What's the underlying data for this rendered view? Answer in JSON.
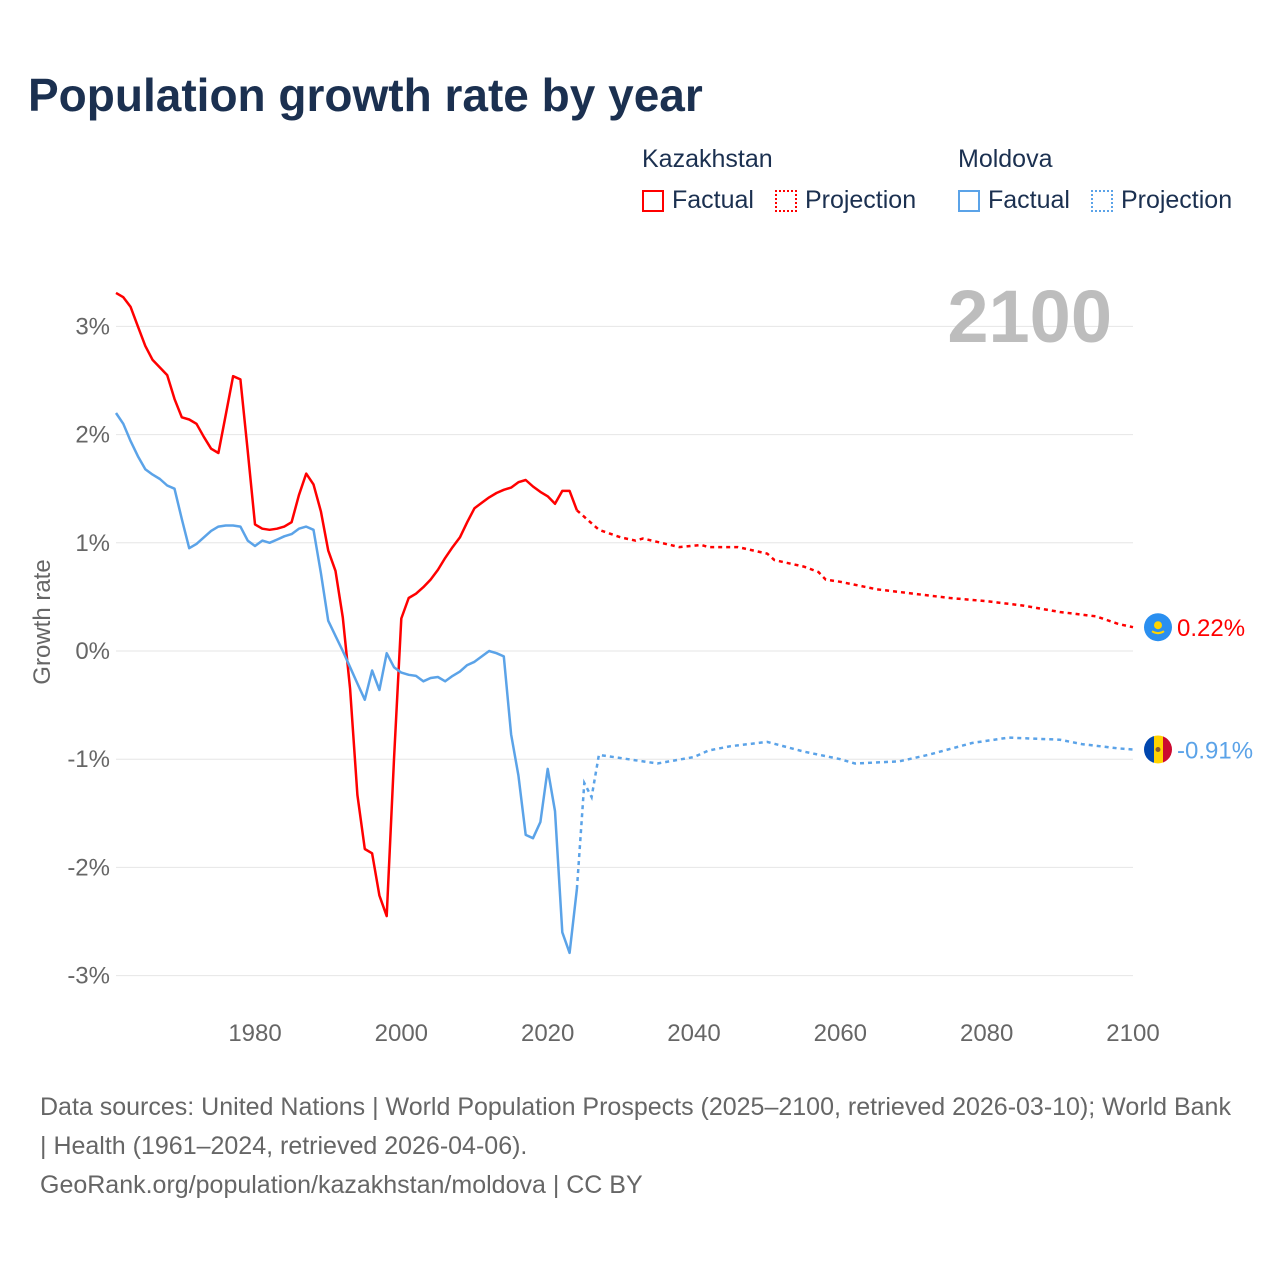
{
  "title": "Population growth rate by year",
  "legend": {
    "groups": [
      {
        "name": "Kazakhstan",
        "factual": "Factual",
        "projection": "Projection"
      },
      {
        "name": "Moldova",
        "factual": "Factual",
        "projection": "Projection"
      }
    ]
  },
  "year_label": "2100",
  "footer": {
    "sources": "Data sources: United Nations | World Population Prospects (2025–2100, retrieved 2026-03-10); World Bank | Health (1961–2024, retrieved 2026-04-06).",
    "link": "GeoRank.org/population/kazakhstan/moldova | CC BY"
  },
  "chart_data": {
    "type": "line",
    "title": "Population growth rate by year",
    "xlabel": "",
    "ylabel": "Growth rate",
    "xlim": [
      1961,
      2100
    ],
    "ylim": [
      -3.3,
      3.4
    ],
    "xticks": [
      1980,
      2000,
      2020,
      2040,
      2060,
      2080,
      2100
    ],
    "yticks": [
      {
        "v": 3,
        "label": "3%"
      },
      {
        "v": 2,
        "label": "2%"
      },
      {
        "v": 1,
        "label": "1%"
      },
      {
        "v": 0,
        "label": "0%"
      },
      {
        "v": -1,
        "label": "-1%"
      },
      {
        "v": -2,
        "label": "-2%"
      },
      {
        "v": -3,
        "label": "-3%"
      }
    ],
    "grid": true,
    "series": [
      {
        "name": "Kazakhstan",
        "color": "#ff0000",
        "end_label": "0.22%",
        "flag": "kazakhstan-flag",
        "factual": {
          "x": [
            1961,
            1962,
            1963,
            1964,
            1965,
            1966,
            1967,
            1968,
            1969,
            1970,
            1971,
            1972,
            1973,
            1974,
            1975,
            1976,
            1977,
            1978,
            1979,
            1980,
            1981,
            1982,
            1983,
            1984,
            1985,
            1986,
            1987,
            1988,
            1989,
            1990,
            1991,
            1992,
            1993,
            1994,
            1995,
            1996,
            1997,
            1998,
            1999,
            2000,
            2001,
            2002,
            2003,
            2004,
            2005,
            2006,
            2007,
            2008,
            2009,
            2010,
            2011,
            2012,
            2013,
            2014,
            2015,
            2016,
            2017,
            2018,
            2019,
            2020,
            2021,
            2022,
            2023,
            2024
          ],
          "y": [
            3.31,
            3.27,
            3.18,
            3.0,
            2.82,
            2.69,
            2.62,
            2.55,
            2.33,
            2.16,
            2.14,
            2.1,
            1.98,
            1.87,
            1.83,
            2.18,
            2.54,
            2.51,
            1.85,
            1.17,
            1.13,
            1.12,
            1.13,
            1.15,
            1.19,
            1.44,
            1.64,
            1.54,
            1.29,
            0.93,
            0.74,
            0.31,
            -0.35,
            -1.33,
            -1.83,
            -1.87,
            -2.26,
            -2.45,
            -1.0,
            0.3,
            0.49,
            0.53,
            0.59,
            0.66,
            0.75,
            0.86,
            0.96,
            1.05,
            1.19,
            1.32,
            1.37,
            1.42,
            1.46,
            1.49,
            1.51,
            1.56,
            1.58,
            1.52,
            1.47,
            1.43,
            1.36,
            1.48,
            1.48,
            1.3
          ]
        },
        "projection": {
          "x": [
            2024,
            2027,
            2030,
            2032,
            2033,
            2038,
            2041,
            2042,
            2046,
            2050,
            2051,
            2055,
            2057,
            2058,
            2060,
            2065,
            2070,
            2075,
            2080,
            2085,
            2090,
            2095,
            2098,
            2100
          ],
          "y": [
            1.3,
            1.12,
            1.05,
            1.02,
            1.04,
            0.96,
            0.98,
            0.96,
            0.96,
            0.9,
            0.84,
            0.78,
            0.73,
            0.66,
            0.64,
            0.57,
            0.53,
            0.49,
            0.46,
            0.42,
            0.36,
            0.32,
            0.25,
            0.22
          ]
        }
      },
      {
        "name": "Moldova",
        "color": "#5ba3e8",
        "end_label": "-0.91%",
        "flag": "moldova-flag",
        "factual": {
          "x": [
            1961,
            1962,
            1963,
            1964,
            1965,
            1966,
            1967,
            1968,
            1969,
            1970,
            1971,
            1972,
            1973,
            1974,
            1975,
            1976,
            1977,
            1978,
            1979,
            1980,
            1981,
            1982,
            1983,
            1984,
            1985,
            1986,
            1987,
            1988,
            1989,
            1990,
            1991,
            1992,
            1993,
            1994,
            1995,
            1996,
            1997,
            1998,
            1999,
            2000,
            2001,
            2002,
            2003,
            2004,
            2005,
            2006,
            2007,
            2008,
            2009,
            2010,
            2011,
            2012,
            2013,
            2014,
            2015,
            2016,
            2017,
            2018,
            2019,
            2020,
            2021,
            2022,
            2023,
            2024
          ],
          "y": [
            2.2,
            2.1,
            1.94,
            1.8,
            1.68,
            1.63,
            1.59,
            1.53,
            1.5,
            1.22,
            0.95,
            0.99,
            1.05,
            1.11,
            1.15,
            1.16,
            1.16,
            1.15,
            1.02,
            0.97,
            1.02,
            1.0,
            1.03,
            1.06,
            1.08,
            1.13,
            1.15,
            1.12,
            0.72,
            0.28,
            0.14,
            0.0,
            -0.15,
            -0.3,
            -0.45,
            -0.18,
            -0.36,
            -0.02,
            -0.15,
            -0.2,
            -0.22,
            -0.23,
            -0.28,
            -0.25,
            -0.24,
            -0.28,
            -0.23,
            -0.19,
            -0.13,
            -0.1,
            -0.05,
            0.0,
            -0.02,
            -0.05,
            -0.77,
            -1.15,
            -1.7,
            -1.73,
            -1.58,
            -1.09,
            -1.48,
            -2.6,
            -2.79,
            -2.2
          ]
        },
        "projection": {
          "x": [
            2024,
            2025,
            2026,
            2027,
            2030,
            2031,
            2035,
            2040,
            2042,
            2045,
            2050,
            2055,
            2060,
            2062,
            2068,
            2072,
            2078,
            2083,
            2090,
            2093,
            2098,
            2100
          ],
          "y": [
            -2.2,
            -1.22,
            -1.35,
            -0.96,
            -0.99,
            -1.0,
            -1.04,
            -0.98,
            -0.92,
            -0.88,
            -0.84,
            -0.93,
            -1.0,
            -1.04,
            -1.02,
            -0.96,
            -0.85,
            -0.8,
            -0.82,
            -0.86,
            -0.9,
            -0.91
          ]
        }
      }
    ]
  }
}
